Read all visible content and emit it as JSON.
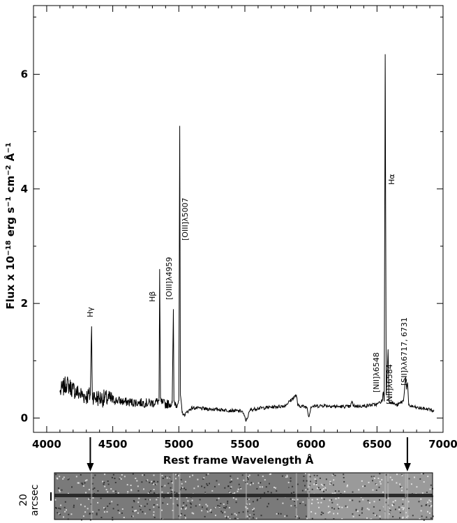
{
  "chart_data": {
    "type": "line",
    "title": "",
    "xlabel": "Rest frame Wavelength Å",
    "ylabel_parts": [
      "Flux x 10",
      "−18",
      " erg s",
      "−1",
      " cm",
      "−2",
      " Å",
      "−1"
    ],
    "xlim": [
      3900,
      7000
    ],
    "ylim": [
      -0.25,
      7.2
    ],
    "x_ticks": [
      4000,
      4500,
      5000,
      5500,
      6000,
      6500,
      7000
    ],
    "y_ticks": [
      0,
      2,
      4,
      6
    ],
    "grid": false,
    "series": [
      {
        "x": [
          4100,
          4150,
          4200,
          4250,
          4300,
          4330,
          4340,
          4345,
          4360,
          4400,
          4500,
          4600,
          4700,
          4800,
          4850,
          4855,
          4861,
          4866,
          4880,
          4900,
          4950,
          4959,
          4963,
          4980,
          5000,
          5007,
          5012,
          5025,
          5040,
          5060,
          5100,
          5200,
          5300,
          5400,
          5480,
          5510,
          5540,
          5600,
          5700,
          5800,
          5890,
          5900,
          5970,
          5985,
          6000,
          6100,
          6200,
          6300,
          6310,
          6320,
          6400,
          6500,
          6540,
          6548,
          6555,
          6562,
          6565,
          6570,
          6584,
          6590,
          6650,
          6700,
          6717,
          6724,
          6731,
          6740,
          6800,
          6900,
          6930
        ],
        "y": [
          0.45,
          0.6,
          0.5,
          0.42,
          0.38,
          0.4,
          1.6,
          0.42,
          0.36,
          0.35,
          0.32,
          0.28,
          0.27,
          0.26,
          0.3,
          2.6,
          0.35,
          0.28,
          0.26,
          0.24,
          0.26,
          1.9,
          0.3,
          0.24,
          0.3,
          5.1,
          0.4,
          0.1,
          0.05,
          0.1,
          0.18,
          0.16,
          0.15,
          0.13,
          0.12,
          -0.05,
          0.14,
          0.17,
          0.19,
          0.21,
          0.4,
          0.22,
          0.19,
          0.02,
          0.2,
          0.22,
          0.2,
          0.2,
          0.3,
          0.21,
          0.21,
          0.24,
          0.3,
          0.46,
          0.3,
          6.35,
          4.3,
          0.4,
          1.2,
          0.3,
          0.22,
          0.3,
          0.72,
          0.5,
          0.62,
          0.22,
          0.18,
          0.15,
          0.12
        ]
      }
    ],
    "annotations": [
      "Hγ",
      "Hβ",
      "[OIII]λ4959",
      "[OIII]λ5007",
      "Hα",
      "[NII]λ6548",
      "[NII]λ6584",
      "[SII]λλ6717, 6731"
    ],
    "arrows_at": [
      4330,
      6730
    ]
  },
  "strip": {
    "scale_value": "20",
    "scale_unit": "arcsec"
  }
}
